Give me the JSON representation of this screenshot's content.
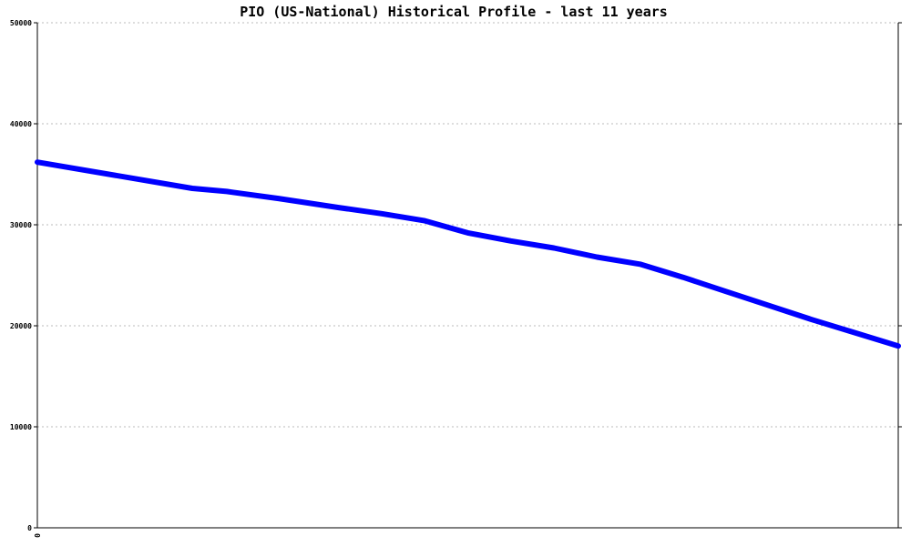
{
  "chart_data": {
    "type": "line",
    "title": "PIO (US-National) Historical Profile - last 11 years",
    "xlabel": "",
    "ylabel": "",
    "ylim": [
      0,
      50000
    ],
    "xlim": [
      0,
      100
    ],
    "y_ticks": [
      "0",
      "10000",
      "20000",
      "30000",
      "40000",
      "50000"
    ],
    "x_tick_labels": [
      "0"
    ],
    "grid": true,
    "series": [
      {
        "color": "#0000ff",
        "x": [
          0,
          18,
          22,
          28,
          35,
          40,
          45,
          50,
          55,
          60,
          65,
          70,
          75,
          80,
          85,
          90,
          95,
          100
        ],
        "values": [
          36200,
          33600,
          33300,
          32600,
          31700,
          31100,
          30400,
          29200,
          28400,
          27700,
          26800,
          26100,
          24800,
          23400,
          22000,
          20600,
          19300,
          18000
        ]
      }
    ]
  }
}
